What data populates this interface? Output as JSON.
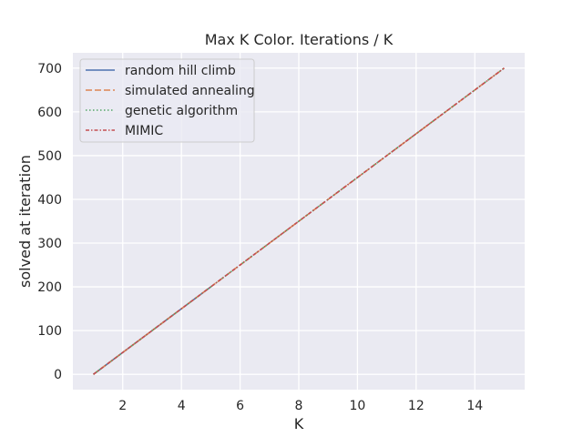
{
  "chart_data": {
    "type": "line",
    "title": "Max K Color.  Iterations / K",
    "xlabel": "K",
    "ylabel": "solved at iteration",
    "xlim": [
      0.3,
      15.7
    ],
    "ylim": [
      -35,
      735
    ],
    "xticks": [
      2,
      4,
      6,
      8,
      10,
      12,
      14
    ],
    "yticks": [
      0,
      100,
      200,
      300,
      400,
      500,
      600,
      700
    ],
    "grid": true,
    "legend_position": "top-left",
    "background": "#eaeaf2",
    "x": [
      1,
      2,
      3,
      4,
      5,
      6,
      7,
      8,
      9,
      10,
      11,
      12,
      13,
      14,
      15
    ],
    "series": [
      {
        "name": "random hill climb",
        "color": "#4c72b0",
        "dash": "solid",
        "values": [
          0,
          50,
          100,
          150,
          200,
          null,
          null,
          null,
          null,
          null,
          null,
          null,
          null,
          null,
          null
        ]
      },
      {
        "name": "simulated annealing",
        "color": "#dd8452",
        "dash": "dashed",
        "values": [
          0,
          50,
          100,
          150,
          200,
          250,
          300,
          350,
          400,
          450,
          500,
          550,
          600,
          650,
          700
        ]
      },
      {
        "name": "genetic algorithm",
        "color": "#55a868",
        "dash": "dotted",
        "values": [
          0,
          50,
          100,
          150,
          200,
          250,
          300,
          350,
          400,
          450,
          500,
          550,
          600,
          650,
          700
        ]
      },
      {
        "name": "MIMIC",
        "color": "#c44e52",
        "dash": "dashdot",
        "values": [
          0,
          50,
          100,
          150,
          200,
          250,
          300,
          350,
          400,
          450,
          500,
          550,
          600,
          650,
          700
        ]
      }
    ]
  }
}
